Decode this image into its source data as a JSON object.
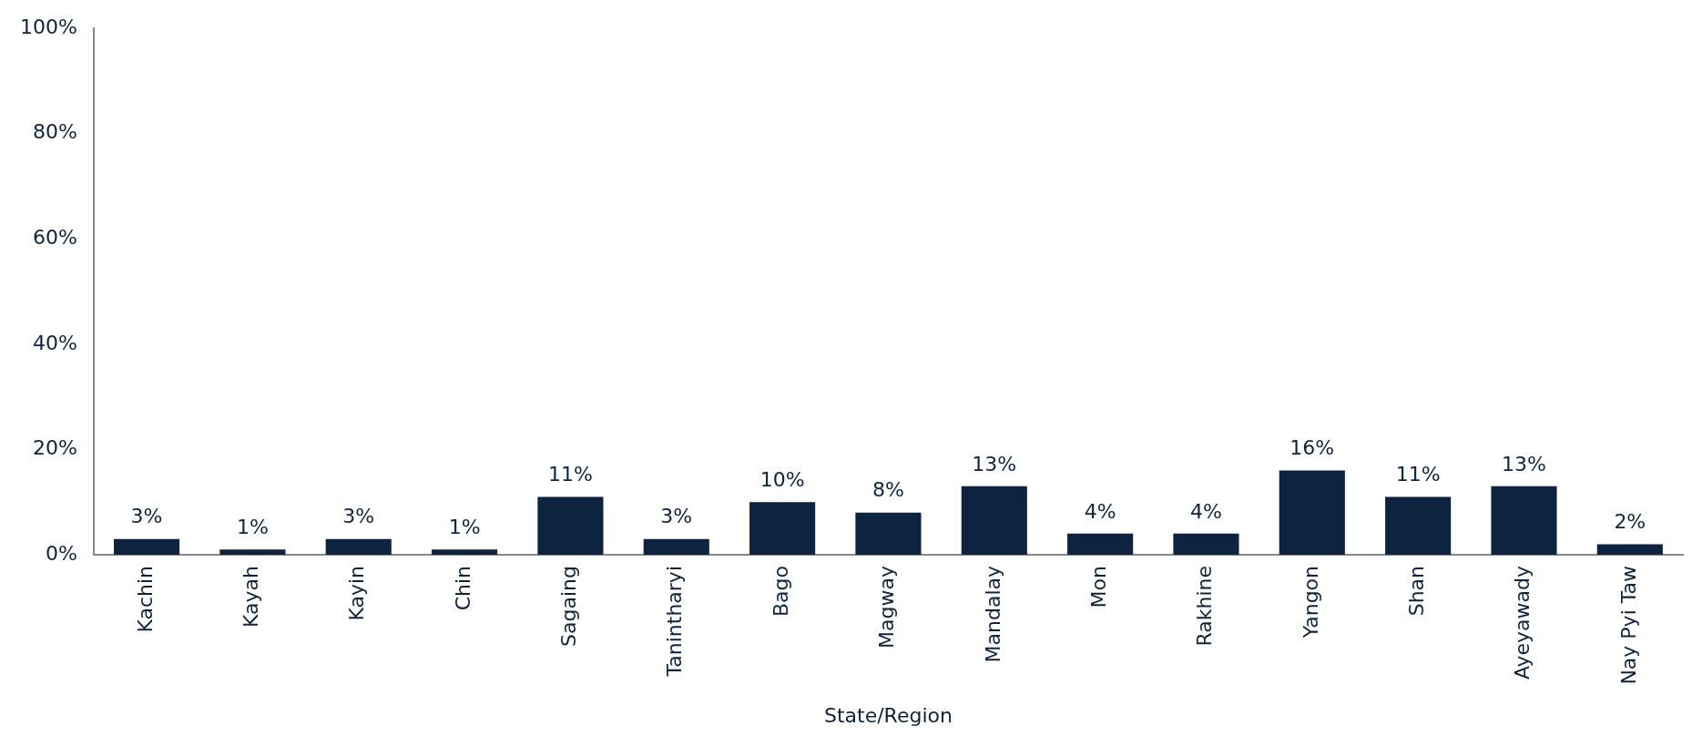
{
  "chart_data": {
    "type": "bar",
    "xlabel": "State/Region",
    "categories": [
      "Kachin",
      "Kayah",
      "Kayin",
      "Chin",
      "Sagaing",
      "Tanintharyi",
      "Bago",
      "Magway",
      "Mandalay",
      "Mon",
      "Rakhine",
      "Yangon",
      "Shan",
      "Ayeyawady",
      "Nay Pyi Taw"
    ],
    "values": [
      3,
      1,
      3,
      1,
      11,
      3,
      10,
      8,
      13,
      4,
      4,
      16,
      11,
      13,
      2
    ],
    "value_labels": [
      "3%",
      "1%",
      "3%",
      "1%",
      "11%",
      "3%",
      "10%",
      "8%",
      "13%",
      "4%",
      "4%",
      "16%",
      "11%",
      "13%",
      "2%"
    ],
    "color": "#0e2340",
    "ylim": [
      0,
      100
    ],
    "yticks": [
      {
        "value": 0,
        "label": "0%"
      },
      {
        "value": 20,
        "label": "20%"
      },
      {
        "value": 40,
        "label": "40%"
      },
      {
        "value": 60,
        "label": "60%"
      },
      {
        "value": 80,
        "label": "80%"
      },
      {
        "value": 100,
        "label": "100%"
      }
    ],
    "grid": false,
    "legend": false
  }
}
